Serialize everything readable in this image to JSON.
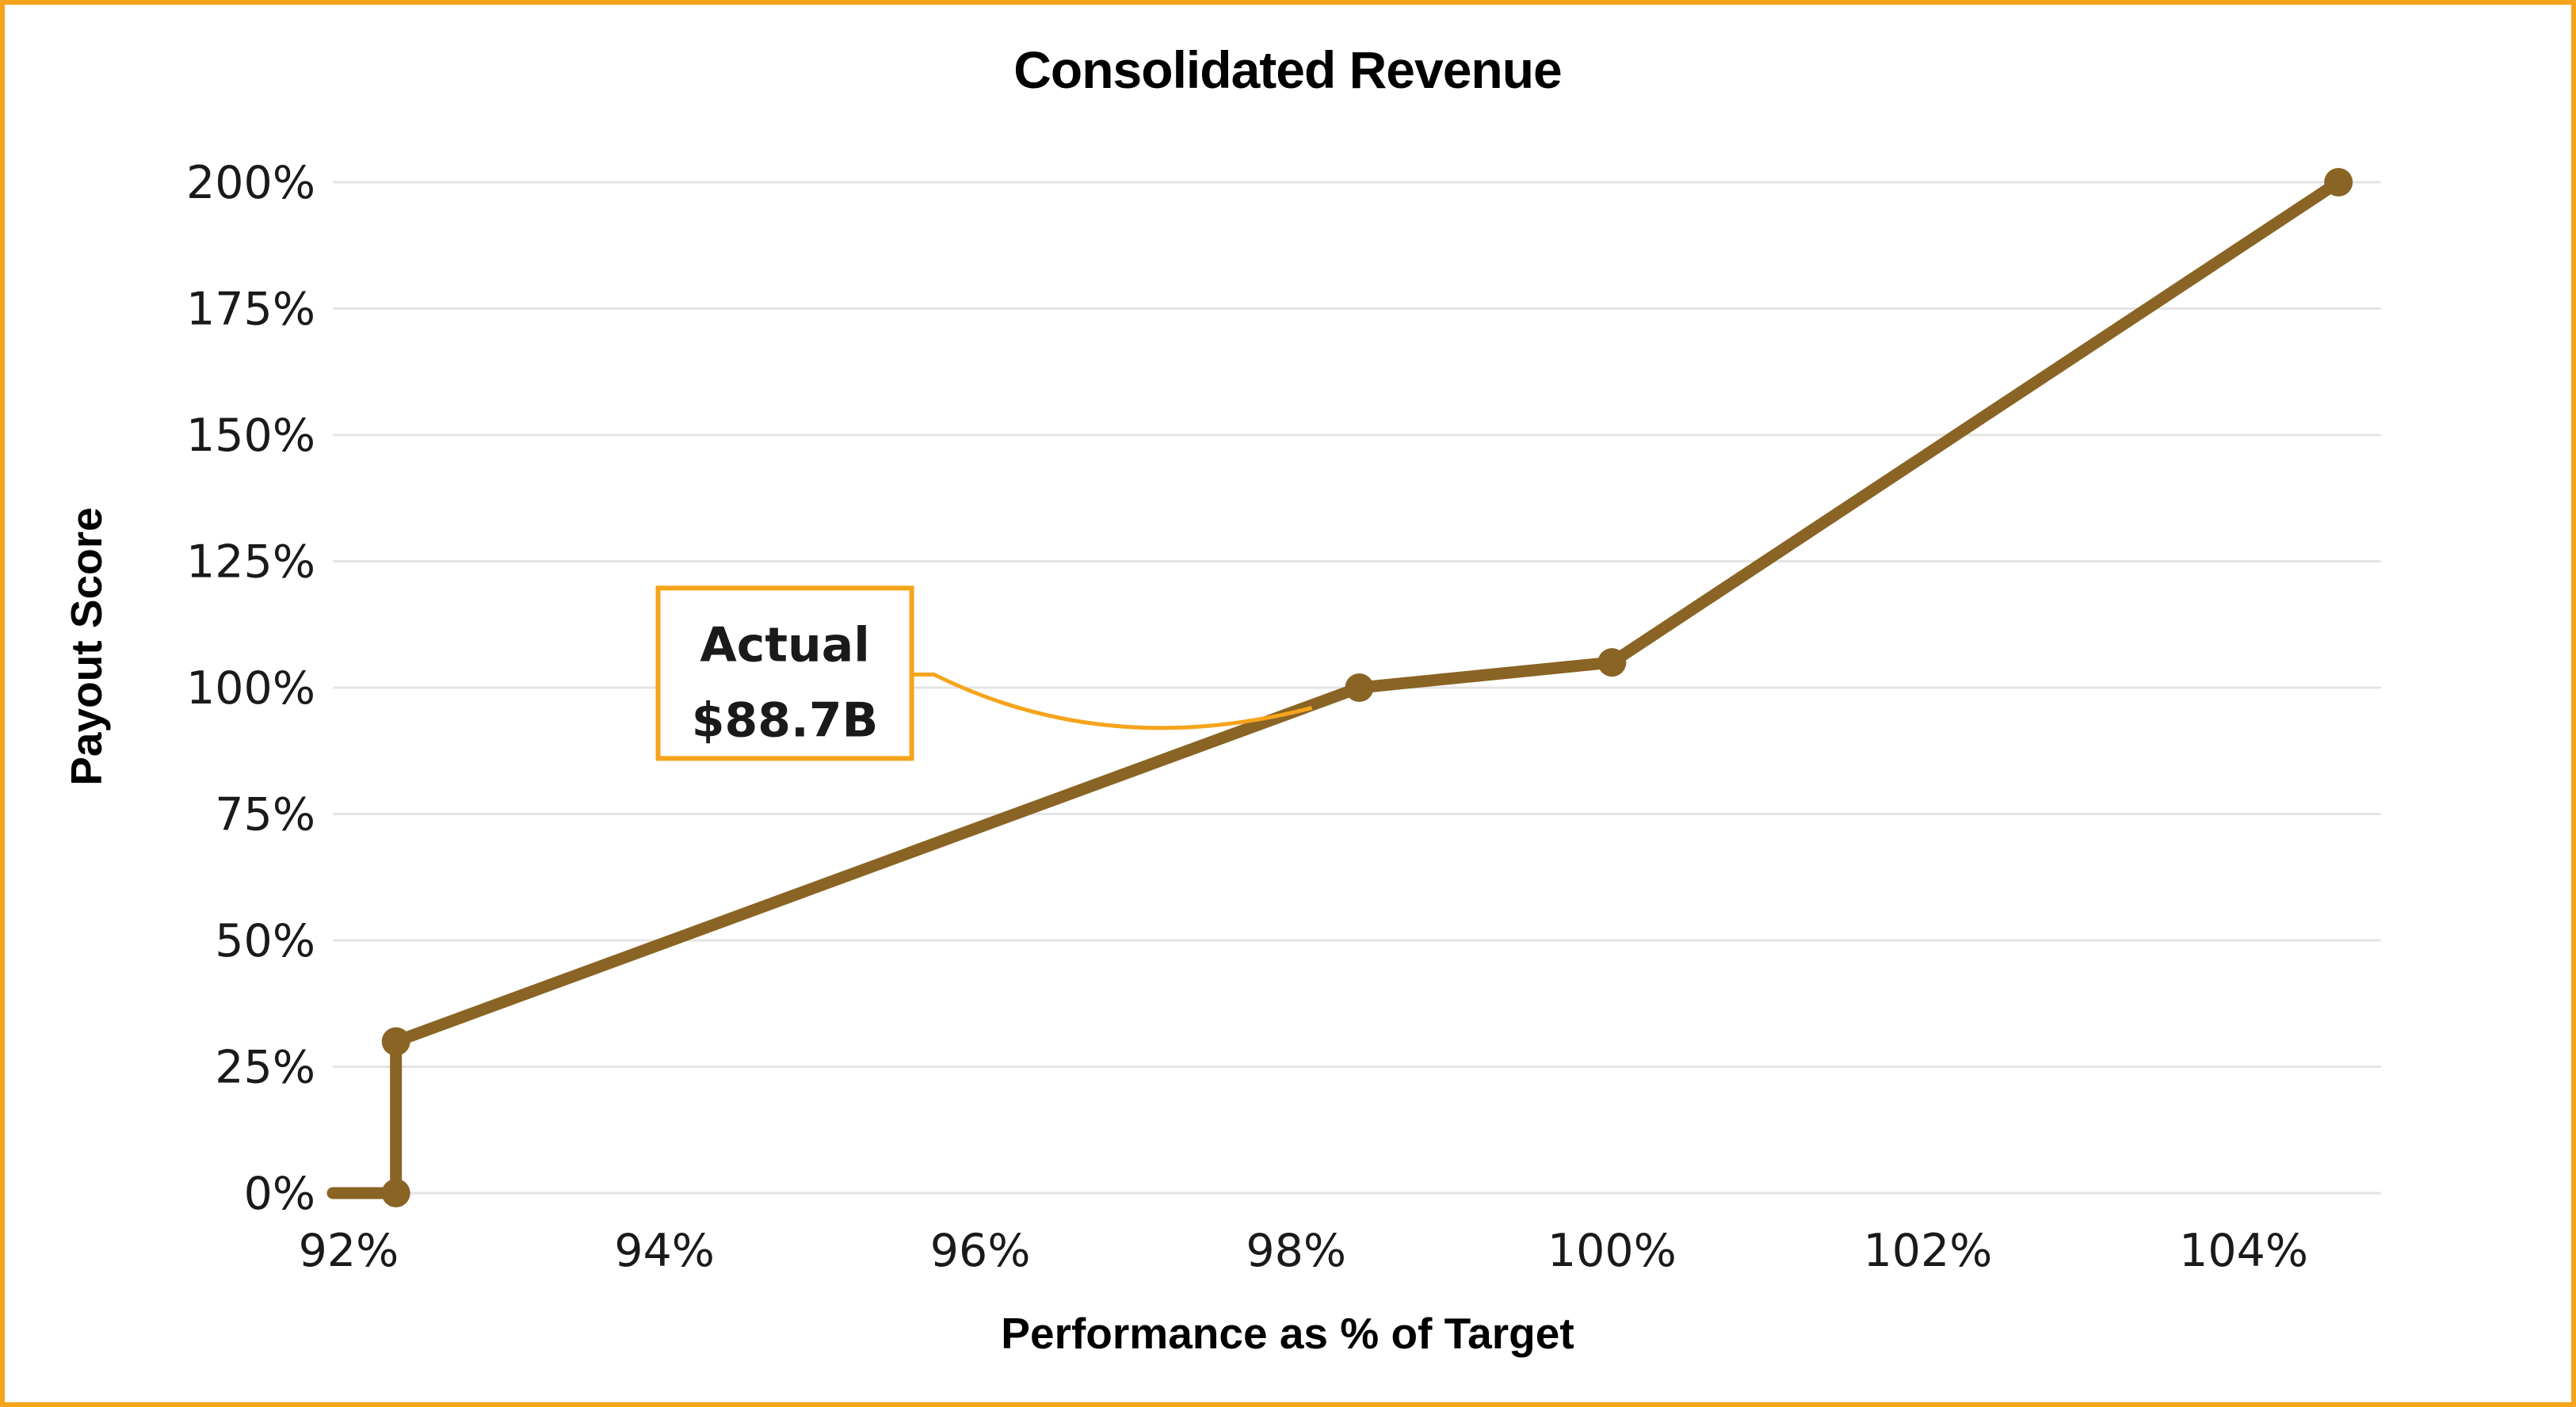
{
  "page": {
    "background_color": "#ffffff",
    "frame_color": "#F5A41C"
  },
  "chart_data": {
    "type": "line",
    "title": "Consolidated Revenue",
    "xlabel": "Performance as % of Target",
    "ylabel": "Payout Score",
    "x_ticks": [
      92,
      94,
      96,
      98,
      100,
      102,
      104
    ],
    "x_tick_labels": [
      "92%",
      "94%",
      "96%",
      "98%",
      "100%",
      "102%",
      "104%"
    ],
    "y_ticks": [
      0,
      25,
      50,
      75,
      100,
      125,
      150,
      175,
      200
    ],
    "y_tick_labels": [
      "0%",
      "25%",
      "50%",
      "75%",
      "100%",
      "125%",
      "150%",
      "175%",
      "200%"
    ],
    "xlim": [
      91.9,
      104.87
    ],
    "ylim": [
      0,
      200
    ],
    "grid": "horizontal-only",
    "gridline_color": "#E4E4E4",
    "series": [
      {
        "name": "Payout curve",
        "color": "#8A6424",
        "line_width": 15,
        "marker_radius": 18,
        "points": [
          [
            91.9,
            0
          ],
          [
            92.3,
            0
          ],
          [
            92.3,
            30
          ],
          [
            98.4,
            100
          ],
          [
            100,
            105
          ],
          [
            104.6,
            200
          ]
        ],
        "marker_points": [
          [
            92.3,
            0
          ],
          [
            92.3,
            30
          ],
          [
            98.4,
            100
          ],
          [
            100,
            105
          ],
          [
            104.6,
            200
          ]
        ]
      }
    ],
    "annotation": {
      "lines": [
        "Actual",
        "$88.7B"
      ],
      "line1": "Actual",
      "line2": "$88.7B",
      "color": "#F5A41C",
      "target_point": [
        98.1,
        96
      ],
      "box_top_left_data": [
        93.96,
        119.7
      ]
    },
    "legend": "none"
  }
}
